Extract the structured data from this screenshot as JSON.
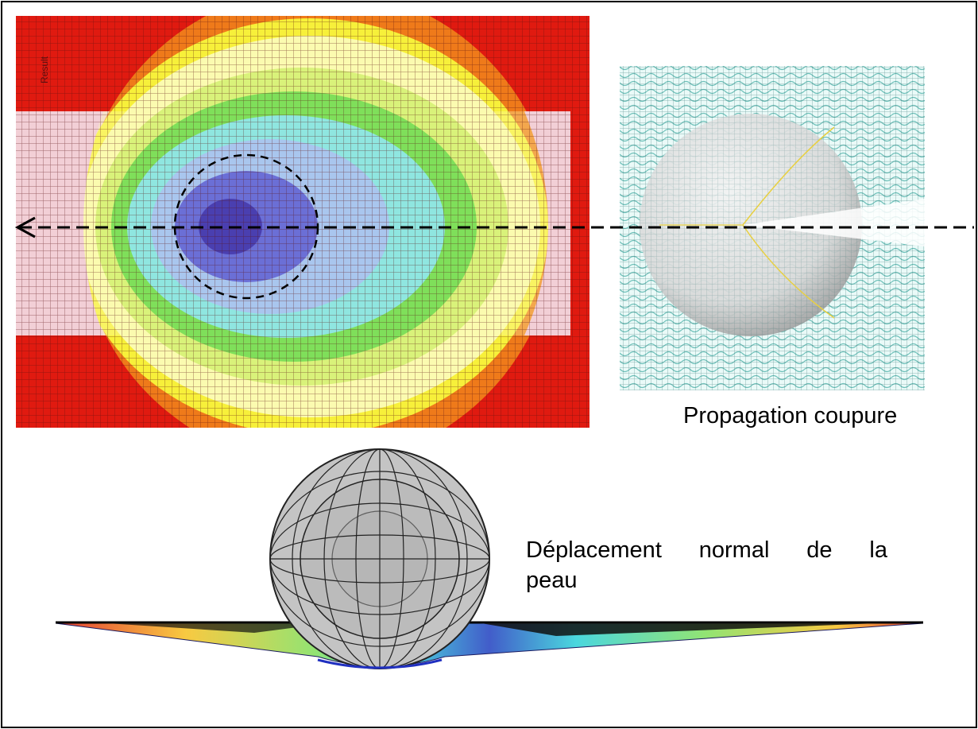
{
  "captions": {
    "propagation": "Propagation coupure",
    "normal_words": [
      "Déplacement",
      "normal",
      "de",
      "la"
    ],
    "normal_line2": "peau"
  },
  "plot_label": "Result",
  "colors": {
    "red": "#e01a10",
    "orange": "#ef7a1a",
    "yellow": "#f7f03a",
    "pale_yellow": "#fbfbb0",
    "green": "#7fdf5a",
    "cyan": "#8fe6e0",
    "light_blue": "#a9c6ee",
    "blue": "#6b6fd6",
    "deep_blue": "#4a3fb0",
    "pink": "#f2cfd6",
    "grid": "#6b1010",
    "sphere_face": "#b8b8b8",
    "sphere_edge": "#222222"
  },
  "icons": {
    "arrow": "arrow-left-icon"
  }
}
